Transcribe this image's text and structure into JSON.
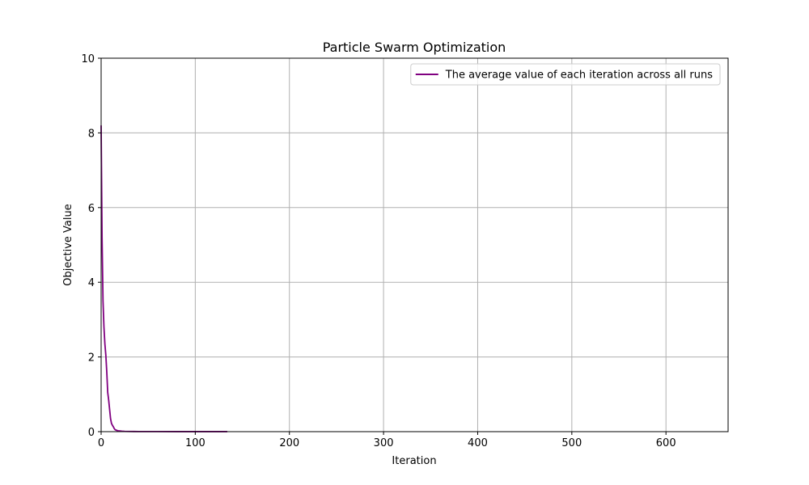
{
  "chart_data": {
    "type": "line",
    "title": "Particle Swarm Optimization",
    "xlabel": "Iteration",
    "ylabel": "Objective Value",
    "xlim": [
      0,
      666
    ],
    "ylim": [
      0,
      10
    ],
    "xticks": [
      0,
      100,
      200,
      300,
      400,
      500,
      600
    ],
    "yticks": [
      0,
      2,
      4,
      6,
      8,
      10
    ],
    "grid": true,
    "legend_position": "upper right",
    "series": [
      {
        "name": "The average value of each iteration across all runs",
        "color": "#800080",
        "x": [
          0,
          1,
          2,
          3,
          4,
          5,
          6,
          7,
          8,
          9,
          10,
          11,
          12,
          13,
          14,
          15,
          16,
          17,
          18,
          20,
          22,
          25,
          30,
          35,
          40,
          50,
          60,
          80,
          100,
          120,
          134
        ],
        "y": [
          8.2,
          5.2,
          3.5,
          2.8,
          2.35,
          2.05,
          1.6,
          1.05,
          0.85,
          0.6,
          0.35,
          0.22,
          0.17,
          0.13,
          0.08,
          0.05,
          0.04,
          0.03,
          0.025,
          0.018,
          0.012,
          0.008,
          0.005,
          0.004,
          0.003,
          0.002,
          0.002,
          0.001,
          0.001,
          0.001,
          0.001
        ]
      }
    ]
  }
}
